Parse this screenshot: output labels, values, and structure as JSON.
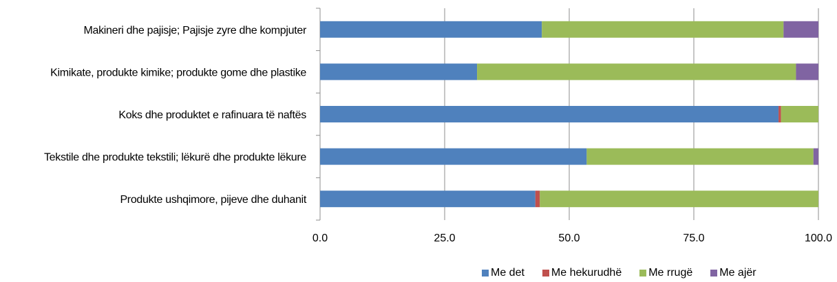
{
  "chart_data": {
    "type": "bar",
    "orientation": "horizontal",
    "stacked": true,
    "categories": [
      "Makineri dhe pajisje; Pajisje zyre dhe kompjuter",
      "Kimikate, produkte kimike; produkte gome dhe plastike",
      "Koks  dhe produktet e rafinuara të naftës",
      "Tekstile dhe produkte tekstili; lëkurë dhe produkte lëkure",
      "Produkte ushqimore, pijeve dhe duhanit"
    ],
    "series": [
      {
        "name": "Me det",
        "color": "#4F81BD",
        "values": [
          44.5,
          31.5,
          92.0,
          53.5,
          43.2
        ]
      },
      {
        "name": "Me hekurudhë",
        "color": "#C0504D",
        "values": [
          0.0,
          0.0,
          0.5,
          0.0,
          0.9
        ]
      },
      {
        "name": "Me rrugë",
        "color": "#9BBB59",
        "values": [
          48.5,
          64.0,
          7.5,
          45.5,
          55.9
        ]
      },
      {
        "name": "Me ajër",
        "color": "#8064A2",
        "values": [
          7.0,
          4.5,
          0.0,
          1.0,
          0.0
        ]
      }
    ],
    "x_ticks": [
      "0.0",
      "25.0",
      "50.0",
      "75.0",
      "100.0"
    ],
    "xlim": [
      0,
      100
    ],
    "grid": true,
    "legend_position": "bottom-right",
    "title": "",
    "xlabel": "",
    "ylabel": ""
  }
}
